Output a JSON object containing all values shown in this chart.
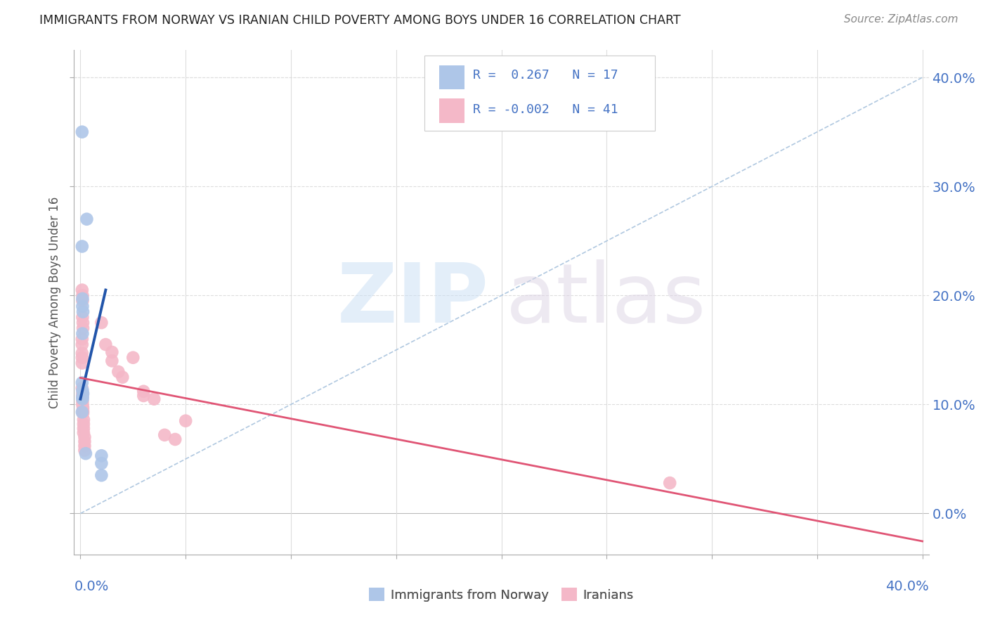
{
  "title": "IMMIGRANTS FROM NORWAY VS IRANIAN CHILD POVERTY AMONG BOYS UNDER 16 CORRELATION CHART",
  "source": "Source: ZipAtlas.com",
  "ylabel": "Child Poverty Among Boys Under 16",
  "xlim": [
    -0.003,
    0.403
  ],
  "ylim": [
    -0.038,
    0.425
  ],
  "ytick_values": [
    0.0,
    0.1,
    0.2,
    0.3,
    0.4
  ],
  "xtick_values": [
    0.0,
    0.05,
    0.1,
    0.15,
    0.2,
    0.25,
    0.3,
    0.35,
    0.4
  ],
  "norway_color": "#aec6e8",
  "iran_color": "#f4b8c8",
  "norway_line_color": "#2255aa",
  "iran_line_color": "#e05575",
  "diag_color": "#b0c8e0",
  "axis_label_color": "#4472c4",
  "grid_color": "#dddddd",
  "bg_color": "#ffffff",
  "title_color": "#222222",
  "text_color": "#555555",
  "norway_points": [
    [
      0.0008,
      0.35
    ],
    [
      0.003,
      0.27
    ],
    [
      0.0008,
      0.245
    ],
    [
      0.001,
      0.197
    ],
    [
      0.001,
      0.19
    ],
    [
      0.0012,
      0.185
    ],
    [
      0.001,
      0.165
    ],
    [
      0.0008,
      0.12
    ],
    [
      0.001,
      0.113
    ],
    [
      0.0012,
      0.11
    ],
    [
      0.001,
      0.107
    ],
    [
      0.001,
      0.105
    ],
    [
      0.0008,
      0.093
    ],
    [
      0.0025,
      0.055
    ],
    [
      0.01,
      0.053
    ],
    [
      0.01,
      0.046
    ],
    [
      0.01,
      0.035
    ]
  ],
  "iran_points": [
    [
      0.0008,
      0.205
    ],
    [
      0.001,
      0.2
    ],
    [
      0.001,
      0.195
    ],
    [
      0.001,
      0.18
    ],
    [
      0.0012,
      0.175
    ],
    [
      0.0012,
      0.17
    ],
    [
      0.0008,
      0.16
    ],
    [
      0.0008,
      0.155
    ],
    [
      0.0008,
      0.147
    ],
    [
      0.0008,
      0.143
    ],
    [
      0.0008,
      0.138
    ],
    [
      0.0008,
      0.115
    ],
    [
      0.001,
      0.11
    ],
    [
      0.001,
      0.107
    ],
    [
      0.001,
      0.103
    ],
    [
      0.001,
      0.1
    ],
    [
      0.0012,
      0.097
    ],
    [
      0.0012,
      0.094
    ],
    [
      0.0012,
      0.092
    ],
    [
      0.0015,
      0.086
    ],
    [
      0.0015,
      0.082
    ],
    [
      0.0015,
      0.078
    ],
    [
      0.0015,
      0.074
    ],
    [
      0.002,
      0.07
    ],
    [
      0.002,
      0.066
    ],
    [
      0.002,
      0.062
    ],
    [
      0.002,
      0.058
    ],
    [
      0.01,
      0.175
    ],
    [
      0.012,
      0.155
    ],
    [
      0.015,
      0.148
    ],
    [
      0.015,
      0.14
    ],
    [
      0.018,
      0.13
    ],
    [
      0.02,
      0.125
    ],
    [
      0.025,
      0.143
    ],
    [
      0.03,
      0.112
    ],
    [
      0.03,
      0.108
    ],
    [
      0.035,
      0.105
    ],
    [
      0.04,
      0.072
    ],
    [
      0.045,
      0.068
    ],
    [
      0.05,
      0.085
    ],
    [
      0.28,
      0.028
    ]
  ],
  "norway_r": 0.267,
  "iran_r": -0.002,
  "norway_n": 17,
  "iran_n": 41,
  "marker_size": 180,
  "norway_line_x": [
    0.0,
    0.012
  ],
  "iran_line_x": [
    0.0,
    0.4
  ],
  "diag_line": [
    [
      0.0,
      0.0
    ],
    [
      0.4,
      0.4
    ]
  ]
}
